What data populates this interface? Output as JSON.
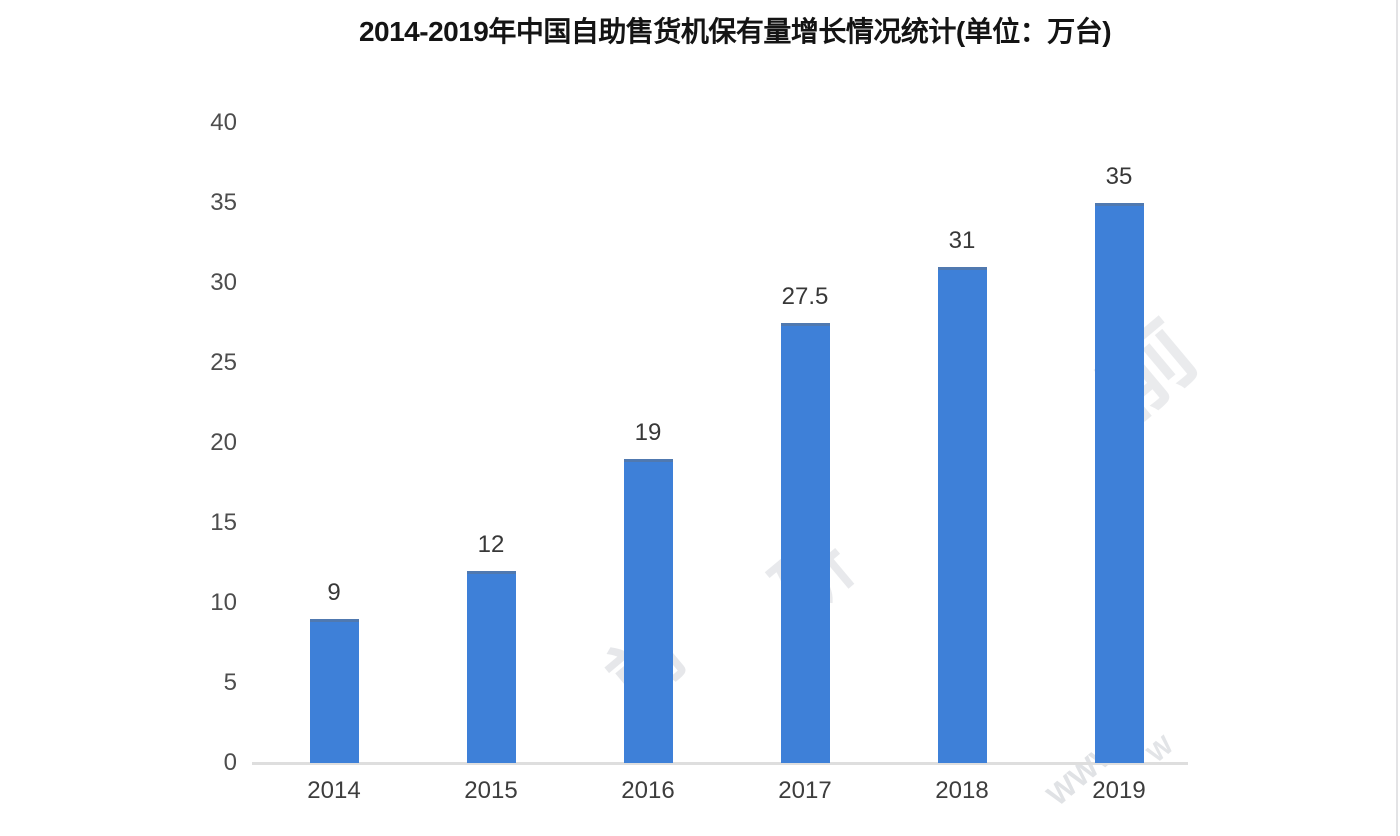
{
  "title": "2014-2019年中国自助售货机保有量增长情况统计(单位：万台)",
  "chart_data": {
    "type": "bar",
    "title": "2014-2019年中国自助售货机保有量增长情况统计(单位：万台)",
    "categories": [
      "2014",
      "2015",
      "2016",
      "2017",
      "2018",
      "2019"
    ],
    "values": [
      9,
      12,
      19,
      27.5,
      31,
      35
    ],
    "value_labels": [
      "9",
      "12",
      "19",
      "27.5",
      "31",
      "35"
    ],
    "xlabel": "",
    "ylabel": "",
    "ylim": [
      0,
      40
    ],
    "yticks": [
      0,
      5,
      10,
      15,
      20,
      25,
      30,
      35,
      40
    ],
    "grid": false,
    "legend": false,
    "bar_color": "#3E80D8",
    "axis_line_color": "#dedede",
    "tick_label_color": "#4d4d4d",
    "value_label_color": "#383838",
    "title_color": "#141414"
  },
  "watermark": {
    "fragments": [
      "前",
      "研",
      "前",
      "WWW",
      "W"
    ]
  }
}
